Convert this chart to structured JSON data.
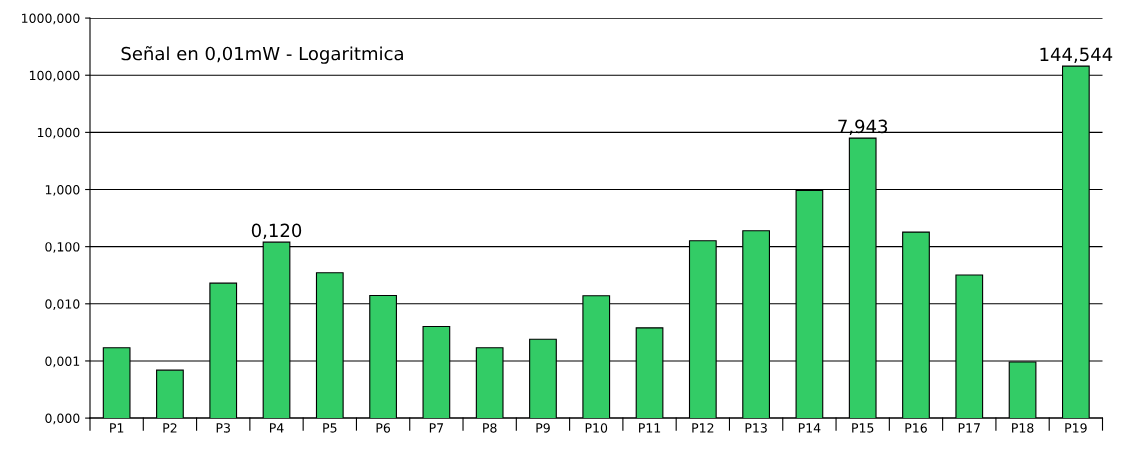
{
  "chart_data": {
    "type": "bar",
    "title": "Señal en 0,01mW - Logaritmica",
    "categories": [
      "P1",
      "P2",
      "P3",
      "P4",
      "P5",
      "P6",
      "P7",
      "P8",
      "P9",
      "P10",
      "P11",
      "P12",
      "P13",
      "P14",
      "P15",
      "P16",
      "P17",
      "P18",
      "P19"
    ],
    "values": [
      0.0017,
      0.00069,
      0.023,
      0.12,
      0.035,
      0.014,
      0.004,
      0.0017,
      0.0024,
      0.0138,
      0.0038,
      0.127,
      0.19,
      0.96,
      7.943,
      0.18,
      0.032,
      0.00096,
      144.544
    ],
    "value_labels": [
      null,
      null,
      null,
      "0,120",
      null,
      null,
      null,
      null,
      null,
      null,
      null,
      null,
      null,
      null,
      "7,943",
      null,
      null,
      null,
      "144,544"
    ],
    "color": "#33cc66",
    "log": true,
    "ylim": [
      0.0001,
      1000
    ],
    "yticks": [
      {
        "value": 0.0001,
        "label": "0,000"
      },
      {
        "value": 0.001,
        "label": "0,001"
      },
      {
        "value": 0.01,
        "label": "0,010"
      },
      {
        "value": 0.1,
        "label": "0,100"
      },
      {
        "value": 1,
        "label": "1,000"
      },
      {
        "value": 10,
        "label": "10,000"
      },
      {
        "value": 100,
        "label": "100,000"
      },
      {
        "value": 1000,
        "label": "1000,000"
      }
    ],
    "grid": "y",
    "legend": false
  }
}
